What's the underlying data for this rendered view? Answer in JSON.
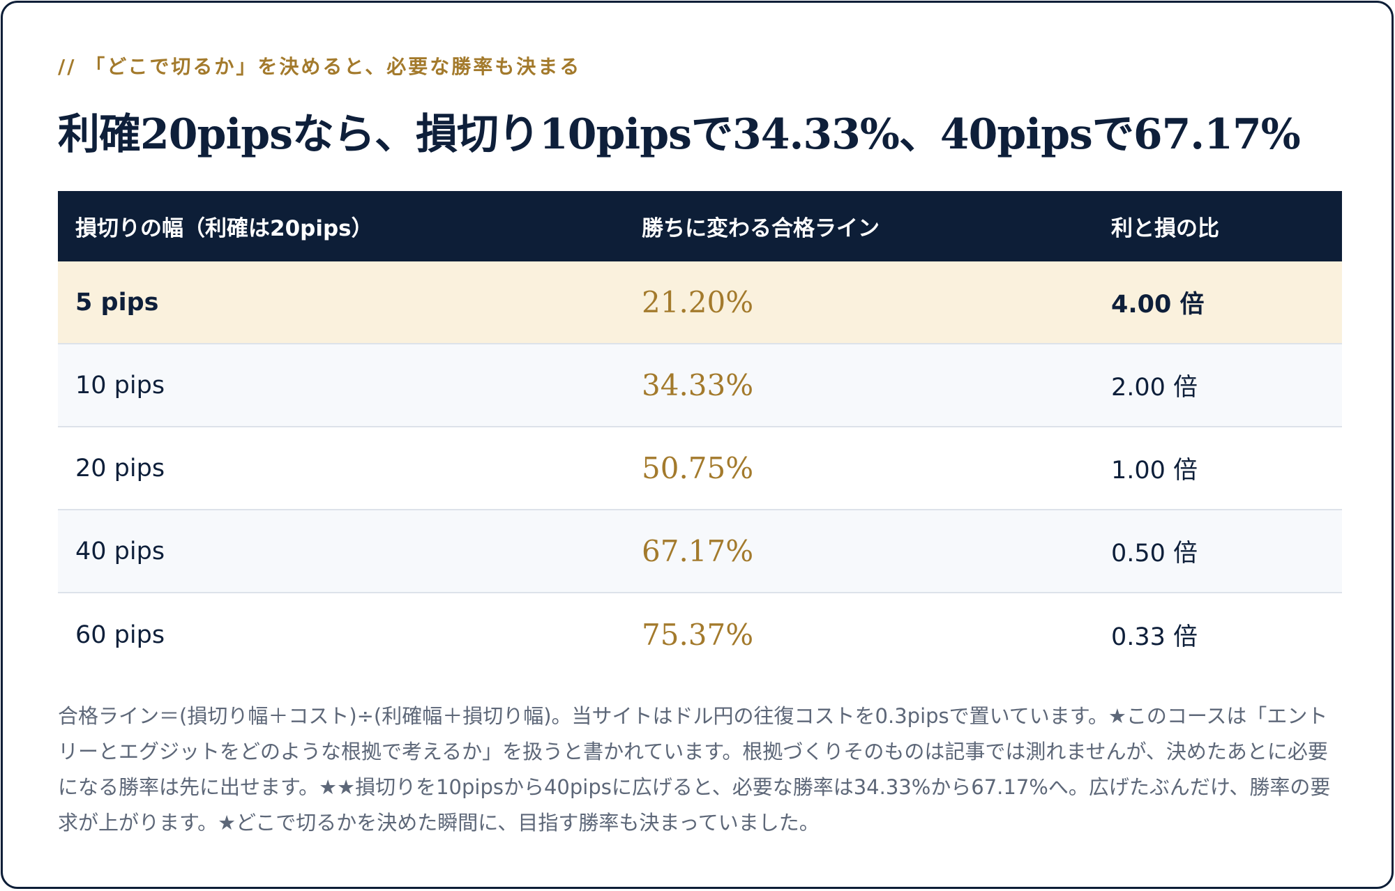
{
  "eyebrow": "// 「どこで切るか」を決めると、必要な勝率も決まる",
  "headline": "利確20pipsなら、損切り10pipsで34.33%、40pipsで67.17%",
  "table": {
    "headers": [
      "損切りの幅（利確は20pips）",
      "勝ちに変わる合格ライン",
      "利と損の比"
    ],
    "rows": [
      {
        "stop": "5 pips",
        "rate": "21.20%",
        "ratio": "4.00 倍",
        "highlight": true
      },
      {
        "stop": "10 pips",
        "rate": "34.33%",
        "ratio": "2.00 倍"
      },
      {
        "stop": "20 pips",
        "rate": "50.75%",
        "ratio": "1.00 倍"
      },
      {
        "stop": "40 pips",
        "rate": "67.17%",
        "ratio": "0.50 倍"
      },
      {
        "stop": "60 pips",
        "rate": "75.37%",
        "ratio": "0.33 倍"
      }
    ]
  },
  "note": "合格ライン＝(損切り幅＋コスト)÷(利確幅＋損切り幅)。当サイトはドル円の往復コストを0.3pipsで置いています。★このコースは「エントリーとエグジットをどのような根拠で考えるか」を扱うと書かれています。根拠づくりそのものは記事では測れませんが、決めたあとに必要になる勝率は先に出せます。★★損切りを10pipsから40pipsに広げると、必要な勝率は34.33%から67.17%へ。広げたぶんだけ、勝率の要求が上がります。★どこで切るかを決めた瞬間に、目指す勝率も決まっていました。",
  "colors": {
    "navy": "#0d1e37",
    "gold": "#a37a2c",
    "highlight_row": "#faf1dd",
    "alt_row": "#f7f9fc"
  }
}
